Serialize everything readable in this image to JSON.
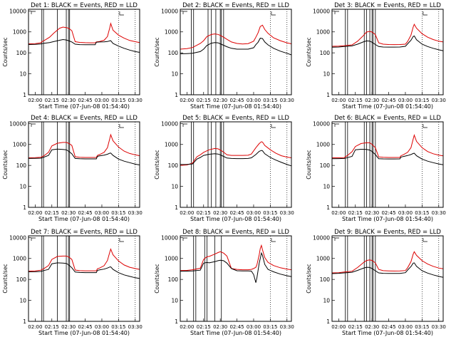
{
  "chart_data": {
    "type": "line",
    "x_unit": "minutes after 02:00",
    "xlim": [
      -6,
      94
    ],
    "ylim": [
      1,
      12000
    ],
    "y_scale": "log",
    "x_ticks": [
      0,
      15,
      30,
      45,
      60,
      75,
      90
    ],
    "x_tick_labels": [
      "02:00",
      "02:15",
      "02:30",
      "02:45",
      "03:00",
      "03:15",
      "03:30"
    ],
    "y_ticks": [
      1,
      10,
      100,
      1000,
      10000
    ],
    "y_tick_labels": [
      "1",
      "10",
      "100",
      "1000",
      "10000"
    ],
    "ylabel": "Counts/sec",
    "xlabel": "Start Time (07-Jun-08 01:54:40)",
    "colors": {
      "events": "#000000",
      "lld": "#dd0000"
    },
    "panels": [
      {
        "title": "Det 1: BLACK = Events, RED = LLD",
        "x": [
          -6,
          0,
          5,
          6,
          8,
          13,
          17,
          22,
          25,
          28,
          30,
          33,
          36,
          40,
          45,
          50,
          54,
          55,
          58,
          62,
          65,
          67,
          68,
          70,
          75,
          80,
          85,
          90,
          94
        ],
        "events": [
          250,
          255,
          265,
          275,
          285,
          310,
          345,
          400,
          430,
          410,
          380,
          330,
          260,
          248,
          244,
          244,
          246,
          320,
          330,
          335,
          345,
          370,
          380,
          280,
          210,
          165,
          135,
          115,
          105
        ],
        "lld": [
          270,
          275,
          300,
          340,
          380,
          560,
          900,
          1500,
          1700,
          1600,
          1500,
          1150,
          340,
          315,
          305,
          300,
          300,
          330,
          350,
          400,
          600,
          1500,
          2500,
          1200,
          700,
          500,
          390,
          340,
          310
        ],
        "intervals": [
          [
            6,
            7.5
          ],
          [
            20,
            28
          ],
          [
            30,
            31
          ]
        ]
      },
      {
        "title": "Det 2: BLACK = Events, RED = LLD",
        "x": [
          -6,
          0,
          5,
          12,
          15,
          18,
          22,
          25,
          28,
          30,
          33,
          36,
          40,
          45,
          50,
          55,
          60,
          62,
          64,
          66,
          68,
          70,
          73,
          78,
          84,
          90,
          94
        ],
        "events": [
          90,
          92,
          95,
          115,
          150,
          225,
          290,
          310,
          300,
          270,
          230,
          195,
          165,
          150,
          150,
          150,
          175,
          245,
          320,
          500,
          480,
          330,
          240,
          165,
          120,
          95,
          80
        ],
        "lld": [
          150,
          160,
          180,
          280,
          380,
          600,
          750,
          800,
          760,
          680,
          560,
          440,
          330,
          280,
          265,
          275,
          360,
          560,
          900,
          1800,
          2100,
          1300,
          850,
          520,
          380,
          300,
          270
        ],
        "intervals": [
          [
            4,
            6
          ],
          [
            19,
            22
          ],
          [
            26,
            30
          ],
          [
            31,
            33
          ]
        ]
      },
      {
        "title": "Det 3: BLACK = Events, RED = LLD",
        "x": [
          -6,
          0,
          5,
          12,
          17,
          22,
          25,
          28,
          30,
          33,
          36,
          40,
          45,
          50,
          55,
          60,
          62,
          65,
          67,
          68,
          70,
          75,
          80,
          85,
          90,
          94
        ],
        "events": [
          185,
          190,
          200,
          215,
          260,
          330,
          370,
          360,
          320,
          250,
          200,
          190,
          188,
          188,
          190,
          205,
          270,
          400,
          600,
          640,
          420,
          260,
          200,
          165,
          140,
          125
        ],
        "lld": [
          205,
          210,
          220,
          240,
          360,
          650,
          980,
          1060,
          980,
          740,
          300,
          260,
          250,
          248,
          250,
          260,
          350,
          700,
          1700,
          2300,
          1500,
          820,
          560,
          430,
          360,
          330
        ],
        "intervals": [
          [
            6,
            8
          ],
          [
            23,
            25
          ],
          [
            28,
            30
          ],
          [
            31,
            33
          ]
        ]
      },
      {
        "title": "Det 4: BLACK = Events, RED = LLD",
        "x": [
          -6,
          0,
          5,
          8,
          12,
          15,
          20,
          25,
          28,
          30,
          33,
          36,
          40,
          45,
          50,
          55,
          56,
          58,
          62,
          65,
          67,
          68,
          70,
          75,
          80,
          85,
          90,
          94
        ],
        "events": [
          215,
          218,
          222,
          250,
          300,
          560,
          600,
          580,
          560,
          480,
          360,
          215,
          208,
          205,
          205,
          205,
          270,
          285,
          310,
          340,
          380,
          390,
          300,
          200,
          160,
          135,
          115,
          105
        ],
        "lld": [
          230,
          235,
          245,
          290,
          420,
          850,
          1150,
          1250,
          1250,
          1150,
          900,
          260,
          245,
          240,
          240,
          240,
          300,
          330,
          420,
          700,
          1800,
          2900,
          1500,
          750,
          480,
          370,
          320,
          290
        ],
        "intervals": [
          [
            6,
            7.5
          ],
          [
            20,
            28
          ],
          [
            30,
            31
          ]
        ]
      },
      {
        "title": "Det 5: BLACK = Events, RED = LLD",
        "x": [
          -6,
          0,
          5,
          9,
          12,
          15,
          20,
          25,
          28,
          30,
          33,
          36,
          40,
          45,
          50,
          55,
          58,
          62,
          65,
          67,
          68,
          70,
          75,
          80,
          85,
          90,
          94
        ],
        "events": [
          110,
          112,
          118,
          200,
          240,
          300,
          340,
          360,
          350,
          320,
          270,
          225,
          215,
          212,
          212,
          214,
          230,
          330,
          470,
          520,
          500,
          360,
          240,
          180,
          140,
          110,
          95
        ],
        "lld": [
          100,
          105,
          130,
          260,
          320,
          420,
          560,
          640,
          620,
          540,
          430,
          320,
          300,
          300,
          300,
          305,
          350,
          700,
          1100,
          1350,
          1300,
          900,
          560,
          380,
          290,
          250,
          230
        ],
        "intervals": [
          [
            4,
            6
          ],
          [
            19,
            22
          ],
          [
            26,
            30
          ],
          [
            31,
            33
          ]
        ]
      },
      {
        "title": "Det 6: BLACK = Events, RED = LLD",
        "x": [
          -6,
          0,
          5,
          8,
          12,
          15,
          20,
          25,
          28,
          30,
          33,
          36,
          40,
          45,
          50,
          55,
          56,
          58,
          62,
          65,
          67,
          68,
          70,
          75,
          80,
          85,
          90,
          94
        ],
        "events": [
          210,
          212,
          215,
          235,
          270,
          560,
          590,
          580,
          540,
          460,
          330,
          210,
          205,
          204,
          204,
          205,
          250,
          265,
          295,
          330,
          370,
          380,
          290,
          200,
          160,
          135,
          118,
          108
        ],
        "lld": [
          230,
          232,
          236,
          300,
          450,
          800,
          1100,
          1200,
          1200,
          1000,
          700,
          255,
          245,
          240,
          240,
          240,
          290,
          320,
          420,
          700,
          1800,
          2800,
          1400,
          700,
          460,
          360,
          310,
          285
        ],
        "intervals": [
          [
            6,
            8
          ],
          [
            23,
            25
          ],
          [
            28,
            30
          ],
          [
            31,
            33
          ]
        ]
      },
      {
        "title": "Det 7: BLACK = Events, RED = LLD",
        "x": [
          -6,
          0,
          5,
          8,
          12,
          15,
          20,
          25,
          28,
          30,
          33,
          36,
          40,
          45,
          50,
          55,
          56,
          58,
          62,
          65,
          67,
          68,
          70,
          75,
          80,
          85,
          90,
          94
        ],
        "events": [
          230,
          232,
          240,
          265,
          300,
          560,
          620,
          600,
          580,
          500,
          360,
          225,
          215,
          212,
          212,
          212,
          270,
          285,
          310,
          350,
          390,
          400,
          300,
          210,
          165,
          140,
          120,
          110
        ],
        "lld": [
          250,
          255,
          275,
          330,
          460,
          900,
          1250,
          1300,
          1300,
          1200,
          900,
          280,
          262,
          258,
          258,
          258,
          320,
          350,
          450,
          800,
          1900,
          2800,
          1500,
          760,
          490,
          380,
          330,
          300
        ],
        "intervals": [
          [
            6,
            7.5
          ],
          [
            20,
            28
          ],
          [
            30,
            31
          ]
        ]
      },
      {
        "title": "Det 8: BLACK = Events, RED = LLD",
        "x": [
          -6,
          0,
          5,
          12,
          15,
          18,
          20,
          25,
          28,
          30,
          33,
          36,
          40,
          45,
          50,
          55,
          58,
          60,
          62,
          63,
          65,
          66,
          67,
          68,
          70,
          73,
          78,
          84,
          90,
          94
        ],
        "events": [
          245,
          250,
          255,
          275,
          600,
          640,
          620,
          700,
          780,
          820,
          780,
          600,
          330,
          260,
          255,
          255,
          250,
          170,
          70,
          120,
          600,
          1000,
          1800,
          1400,
          520,
          300,
          230,
          180,
          150,
          135
        ],
        "lld": [
          265,
          270,
          290,
          340,
          900,
          1200,
          1250,
          1600,
          1900,
          2100,
          1800,
          1300,
          330,
          300,
          290,
          290,
          300,
          330,
          380,
          500,
          1500,
          3000,
          4200,
          2600,
          1100,
          650,
          460,
          360,
          310,
          290
        ],
        "intervals": [
          [
            6,
            8
          ],
          [
            16,
            18
          ],
          [
            25,
            31
          ]
        ]
      },
      {
        "title": "Det 9: BLACK = Events, RED = LLD",
        "x": [
          -6,
          0,
          5,
          12,
          17,
          22,
          25,
          28,
          30,
          33,
          36,
          40,
          45,
          50,
          55,
          60,
          62,
          65,
          67,
          68,
          70,
          75,
          80,
          85,
          90,
          94
        ],
        "events": [
          190,
          195,
          205,
          220,
          270,
          340,
          380,
          370,
          330,
          260,
          205,
          195,
          192,
          192,
          194,
          210,
          280,
          410,
          600,
          620,
          420,
          260,
          200,
          165,
          140,
          125
        ],
        "lld": [
          205,
          210,
          225,
          245,
          370,
          620,
          800,
          850,
          800,
          620,
          300,
          262,
          255,
          252,
          255,
          265,
          360,
          700,
          1600,
          2100,
          1400,
          780,
          540,
          420,
          350,
          320
        ],
        "intervals": [
          [
            6,
            8
          ],
          [
            23,
            25
          ],
          [
            28,
            30
          ],
          [
            31,
            33
          ]
        ]
      }
    ]
  }
}
